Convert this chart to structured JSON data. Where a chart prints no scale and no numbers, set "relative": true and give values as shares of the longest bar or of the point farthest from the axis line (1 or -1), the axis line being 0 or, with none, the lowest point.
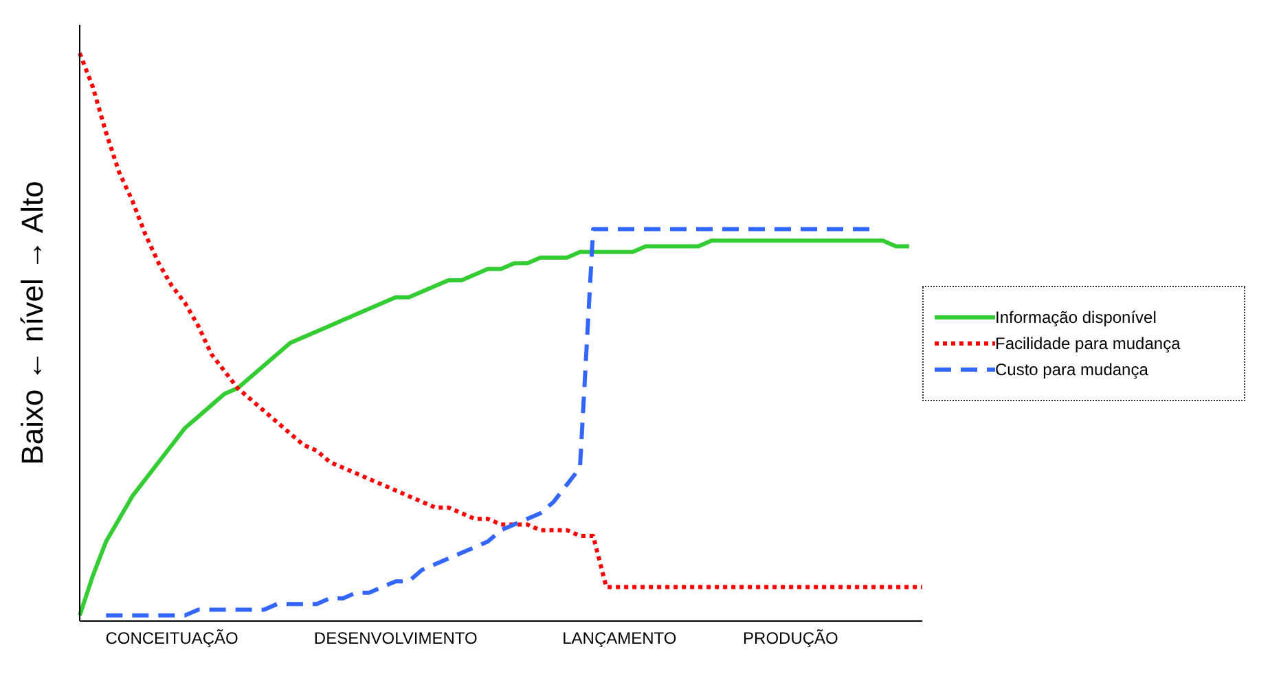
{
  "chart_data": {
    "type": "line",
    "relative": true,
    "ylabel": "Baixo ← nível → Alto",
    "legend": "right",
    "marker": "none",
    "grid": false,
    "categories": [
      null,
      null,
      null,
      null,
      null,
      null,
      null,
      "CONCEITUAÇÃO",
      null,
      null,
      null,
      null,
      null,
      null,
      null,
      null,
      null,
      null,
      null,
      null,
      null,
      null,
      null,
      null,
      "DESENVOLVIMENTO",
      null,
      null,
      null,
      null,
      null,
      null,
      null,
      null,
      null,
      null,
      null,
      null,
      null,
      null,
      null,
      null,
      "LANÇAMENTO",
      null,
      null,
      null,
      null,
      null,
      null,
      null,
      null,
      null,
      null,
      null,
      null,
      "PRODUÇÃO",
      null,
      null,
      null,
      null,
      null,
      null,
      null,
      null,
      null,
      null
    ],
    "series": [
      {
        "name": "Informação disponível",
        "color": "#33cc33",
        "line_style": "solid",
        "values": [
          0.01,
          0.08,
          0.14,
          0.18,
          0.22,
          0.25,
          0.28,
          0.31,
          0.34,
          0.36,
          0.38,
          0.4,
          0.41,
          0.43,
          0.45,
          0.47,
          0.49,
          0.5,
          0.51,
          0.52,
          0.53,
          0.54,
          0.55,
          0.56,
          0.57,
          0.57,
          0.58,
          0.59,
          0.6,
          0.6,
          0.61,
          0.62,
          0.62,
          0.63,
          0.63,
          0.64,
          0.64,
          0.64,
          0.65,
          0.65,
          0.65,
          0.65,
          0.65,
          0.66,
          0.66,
          0.66,
          0.66,
          0.66,
          0.67,
          0.67,
          0.67,
          0.67,
          0.67,
          0.67,
          0.67,
          0.67,
          0.67,
          0.67,
          0.67,
          0.67,
          0.67,
          0.67,
          0.66,
          0.66,
          null
        ]
      },
      {
        "name": "Facilidade para mudança",
        "color": "#ff0000",
        "line_style": "dotted",
        "values": [
          1,
          0.94,
          0.86,
          0.79,
          0.74,
          0.68,
          0.63,
          0.59,
          0.56,
          0.52,
          0.47,
          0.44,
          0.41,
          0.39,
          0.37,
          0.35,
          0.33,
          0.31,
          0.3,
          0.28,
          0.27,
          0.26,
          0.25,
          0.24,
          0.23,
          0.22,
          0.21,
          0.2,
          0.2,
          0.19,
          0.18,
          0.18,
          0.17,
          0.17,
          0.17,
          0.16,
          0.16,
          0.16,
          0.15,
          0.15,
          0.06,
          0.06,
          0.06,
          0.06,
          0.06,
          0.06,
          0.06,
          0.06,
          0.06,
          0.06,
          0.06,
          0.06,
          0.06,
          0.06,
          0.06,
          0.06,
          0.06,
          0.06,
          0.06,
          0.06,
          0.06,
          0.06,
          0.06,
          0.06,
          0.06
        ]
      },
      {
        "name": "Custo para mudança",
        "color": "#3366ff",
        "line_style": "dashed",
        "values": [
          null,
          null,
          0.01,
          0.01,
          0.01,
          0.01,
          0.01,
          0.01,
          0.01,
          0.02,
          0.02,
          0.02,
          0.02,
          0.02,
          0.02,
          0.03,
          0.03,
          0.03,
          0.03,
          0.04,
          0.04,
          0.05,
          0.05,
          0.06,
          0.07,
          0.07,
          0.09,
          0.1,
          0.11,
          0.12,
          0.13,
          0.14,
          0.16,
          0.17,
          0.18,
          0.19,
          0.21,
          0.24,
          0.27,
          0.69,
          0.69,
          0.69,
          0.69,
          0.69,
          0.69,
          0.69,
          0.69,
          0.69,
          0.69,
          0.69,
          0.69,
          0.69,
          0.69,
          0.69,
          0.69,
          0.69,
          0.69,
          0.69,
          0.69,
          0.69,
          0.69,
          null,
          null,
          null,
          null
        ]
      }
    ]
  }
}
